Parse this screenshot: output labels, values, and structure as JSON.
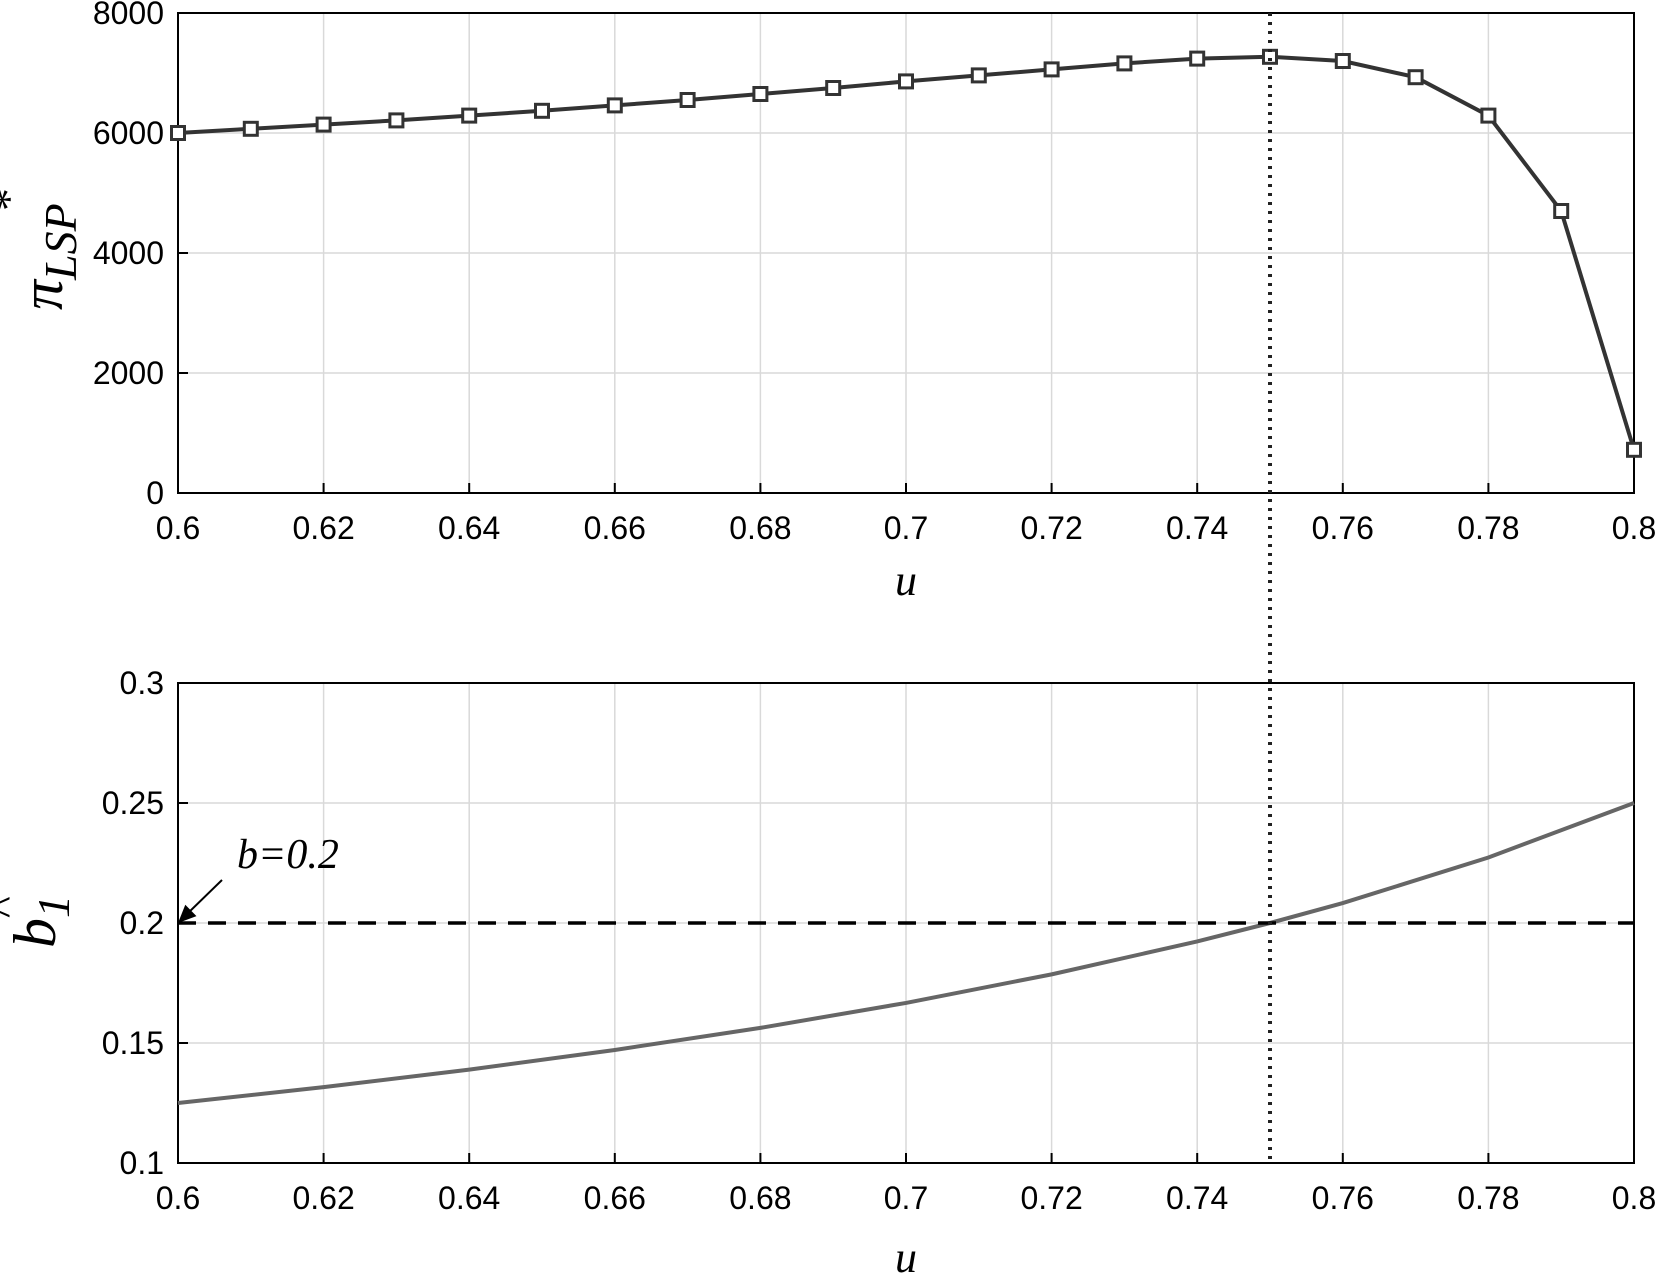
{
  "chart_data": [
    {
      "type": "line",
      "panel": "top",
      "xlabel": "u",
      "ylabel": {
        "base": "π",
        "subscript": "LSP",
        "superscript": "*"
      },
      "xlim": [
        0.6,
        0.8
      ],
      "ylim": [
        0,
        8000
      ],
      "xticks": [
        "0.6",
        "0.62",
        "0.64",
        "0.66",
        "0.68",
        "0.7",
        "0.72",
        "0.74",
        "0.76",
        "0.78",
        "0.8"
      ],
      "yticks": [
        "0",
        "2000",
        "4000",
        "6000",
        "8000"
      ],
      "grid": true,
      "marker": "square",
      "line_color": "#333333",
      "x": [
        0.6,
        0.61,
        0.62,
        0.63,
        0.64,
        0.65,
        0.66,
        0.67,
        0.68,
        0.69,
        0.7,
        0.71,
        0.72,
        0.73,
        0.74,
        0.75,
        0.76,
        0.77,
        0.78,
        0.79,
        0.8
      ],
      "y": [
        6000,
        6070,
        6140,
        6210,
        6290,
        6370,
        6460,
        6550,
        6650,
        6750,
        6860,
        6960,
        7060,
        7160,
        7240,
        7270,
        7200,
        6930,
        6290,
        4700,
        720
      ],
      "reference_lines": [
        {
          "orientation": "vertical",
          "x": 0.75,
          "style": "dotted",
          "spans_panels": true
        }
      ]
    },
    {
      "type": "line",
      "panel": "bottom",
      "xlabel": "u",
      "ylabel": {
        "base": "b",
        "accent": "^",
        "subscript": "1"
      },
      "xlim": [
        0.6,
        0.8
      ],
      "ylim": [
        0.1,
        0.3
      ],
      "xticks": [
        "0.6",
        "0.62",
        "0.64",
        "0.66",
        "0.68",
        "0.7",
        "0.72",
        "0.74",
        "0.76",
        "0.78",
        "0.8"
      ],
      "yticks": [
        "0.1",
        "0.15",
        "0.2",
        "0.25",
        "0.3"
      ],
      "grid": true,
      "line_color": "#666666",
      "x": [
        0.6,
        0.62,
        0.64,
        0.66,
        0.68,
        0.7,
        0.72,
        0.74,
        0.75,
        0.76,
        0.78,
        0.8
      ],
      "y": [
        0.125,
        0.1316,
        0.1389,
        0.1471,
        0.1563,
        0.1667,
        0.1786,
        0.1923,
        0.2,
        0.2083,
        0.2273,
        0.25
      ],
      "reference_lines": [
        {
          "orientation": "horizontal",
          "y": 0.2,
          "style": "dashed"
        }
      ],
      "annotations": [
        {
          "text": "b=0.2",
          "arrow_to": [
            0.6,
            0.2
          ]
        }
      ]
    }
  ]
}
